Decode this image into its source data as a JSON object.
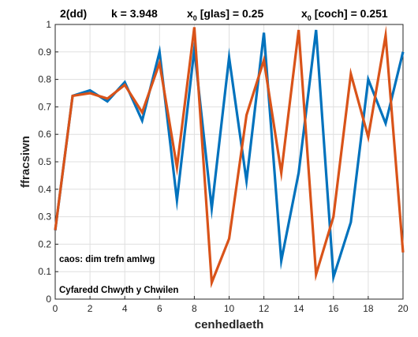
{
  "header": {
    "label": "2(dd)",
    "k_label": "k  =  3.948",
    "x0_blue_sym": "x",
    "x0_blue_sub": "0",
    "x0_blue_rest": " [glas]  =  0.25",
    "x0_red_sym": "x",
    "x0_red_sub": "0",
    "x0_red_rest": " [coch]  =  0.251"
  },
  "chart_data": {
    "type": "line",
    "xlabel": "cenhedlaeth",
    "ylabel": "ffracsiwn",
    "xlim": [
      0,
      20
    ],
    "ylim": [
      0,
      1
    ],
    "x_ticks": [
      "0",
      "2",
      "4",
      "6",
      "8",
      "10",
      "12",
      "14",
      "16",
      "18",
      "20"
    ],
    "y_ticks": [
      "0",
      "0.1",
      "0.2",
      "0.3",
      "0.4",
      "0.5",
      "0.6",
      "0.7",
      "0.8",
      "0.9",
      "1"
    ],
    "grid": true,
    "x": [
      0,
      1,
      2,
      3,
      4,
      5,
      6,
      7,
      8,
      9,
      10,
      11,
      12,
      13,
      14,
      15,
      16,
      17,
      18,
      19,
      20
    ],
    "series": [
      {
        "color": "#0072BD",
        "values": [
          0.25,
          0.74,
          0.76,
          0.72,
          0.79,
          0.65,
          0.9,
          0.36,
          0.91,
          0.33,
          0.88,
          0.43,
          0.97,
          0.14,
          0.46,
          0.98,
          0.08,
          0.28,
          0.8,
          0.64,
          0.9
        ]
      },
      {
        "color": "#D95319",
        "values": [
          0.251,
          0.74,
          0.75,
          0.73,
          0.78,
          0.68,
          0.86,
          0.48,
          0.99,
          0.06,
          0.22,
          0.67,
          0.87,
          0.46,
          0.98,
          0.09,
          0.3,
          0.82,
          0.59,
          0.96,
          0.17
        ]
      }
    ],
    "annotations": [
      "caos: dim trefn amlwg",
      "Cyfaredd Chwyth y Chwilen"
    ]
  }
}
